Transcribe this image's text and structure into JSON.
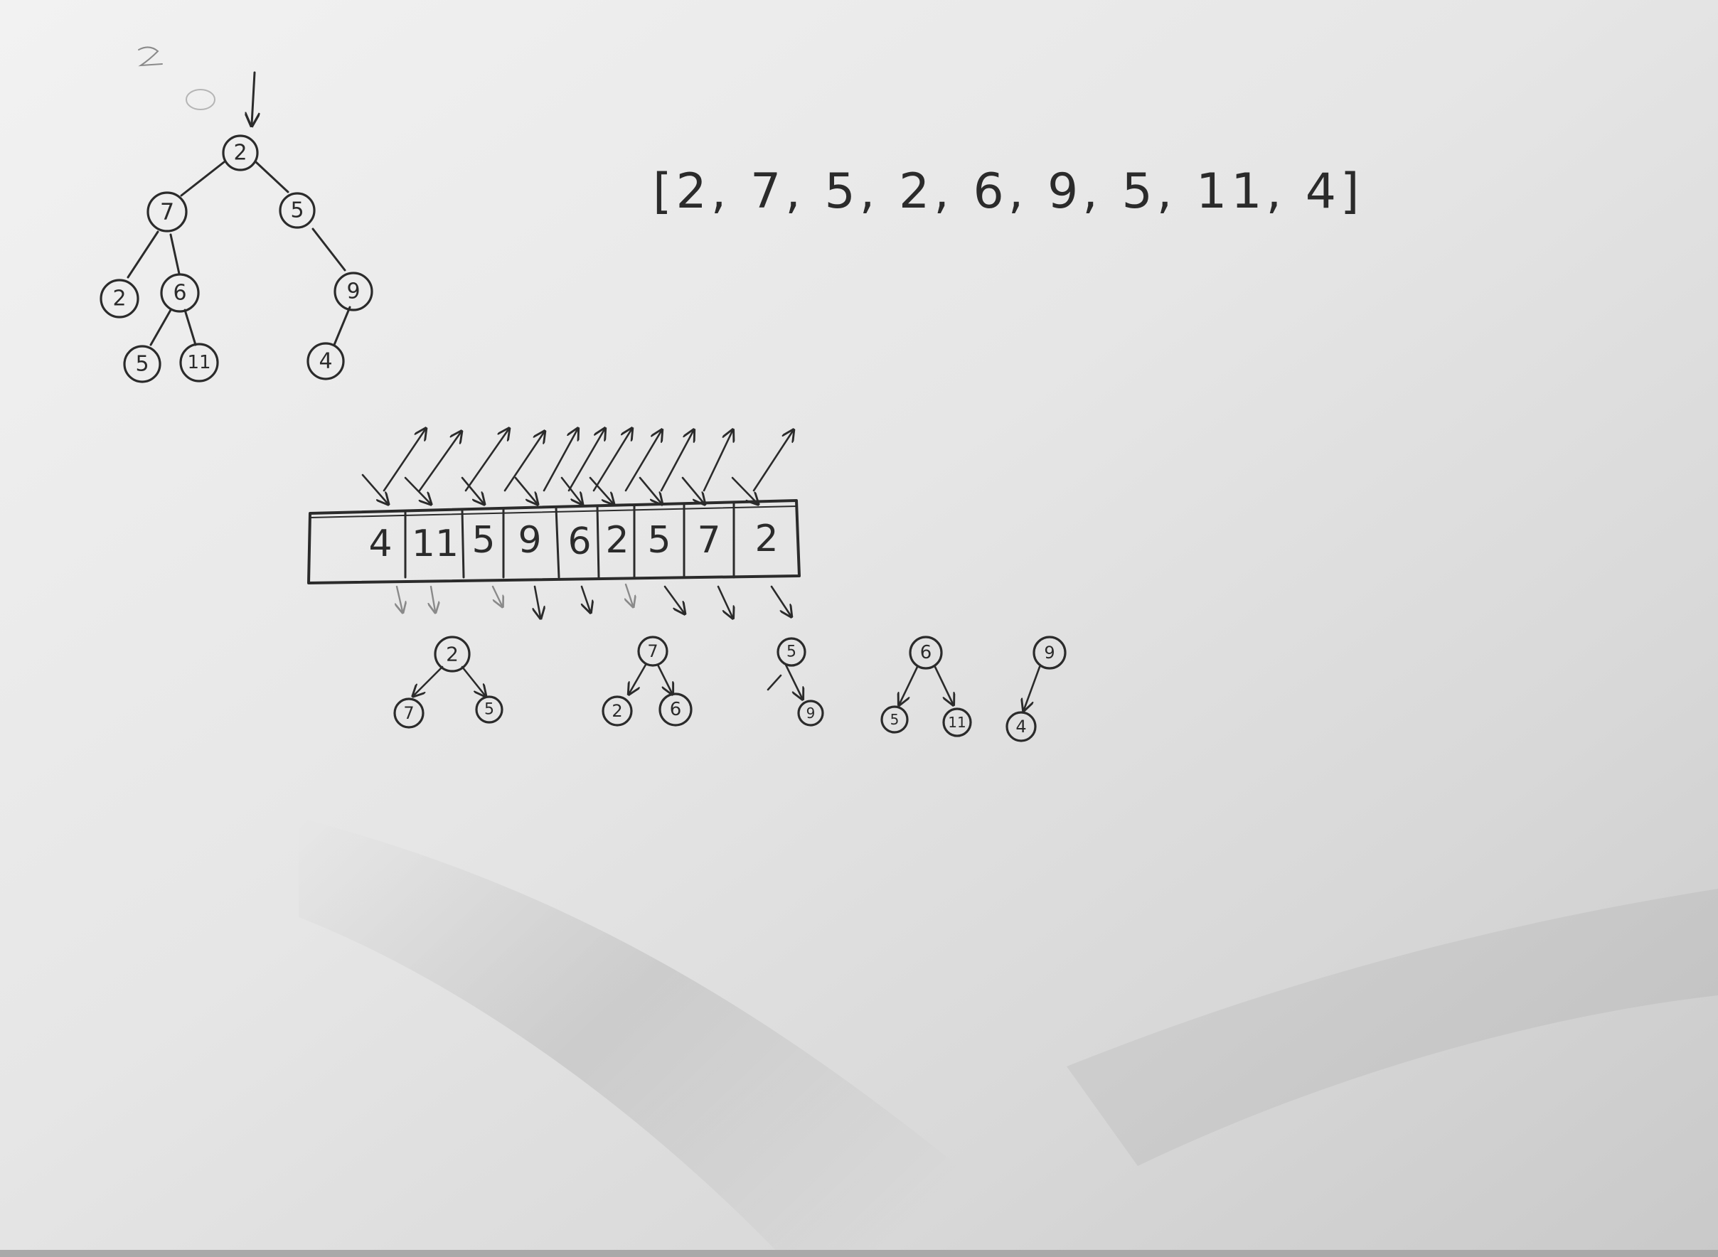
{
  "array_notation": "[2, 7, 5, 2, 6, 9, 5, 11, 4]",
  "tree": {
    "nodes": [
      "2",
      "7",
      "5",
      "2",
      "6",
      "9",
      "5",
      "11",
      "4"
    ]
  },
  "array_cells": [
    "4",
    "11",
    "5",
    "9",
    "6",
    "2",
    "5",
    "7",
    "2"
  ],
  "subtrees": [
    {
      "root": "2",
      "children": [
        "7",
        "5"
      ]
    },
    {
      "root": "7",
      "children": [
        "2",
        "6"
      ]
    },
    {
      "root": "5",
      "children": [
        "9"
      ]
    },
    {
      "root": "6",
      "children": [
        "5",
        "11"
      ]
    },
    {
      "root": "9",
      "children": [
        "4"
      ]
    }
  ]
}
